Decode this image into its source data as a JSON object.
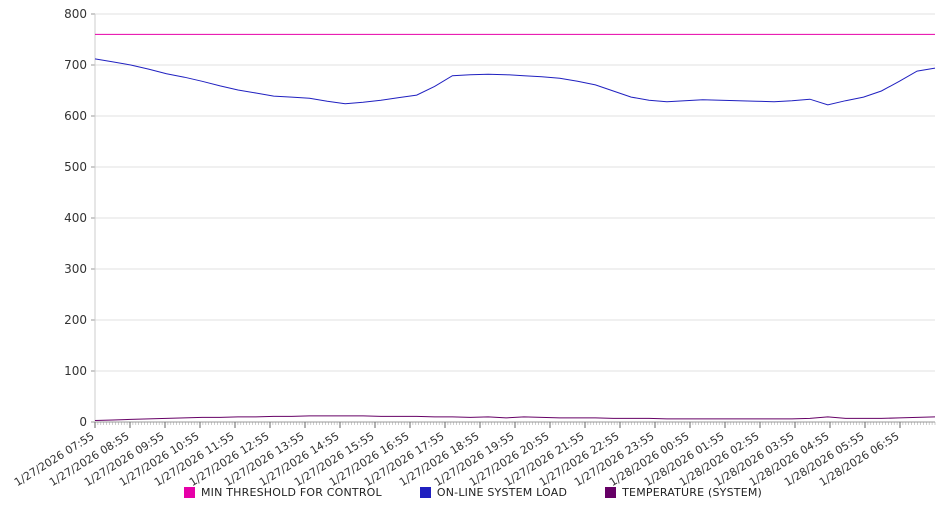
{
  "chart_data": {
    "type": "line",
    "title": "",
    "xlabel": "",
    "ylabel": "",
    "ylim": [
      0,
      800
    ],
    "yticks": [
      0,
      100,
      200,
      300,
      400,
      500,
      600,
      700,
      800
    ],
    "grid": true,
    "legend_position": "bottom",
    "x_labels": [
      "1/27/2026 07:55",
      "1/27/2026 08:55",
      "1/27/2026 09:55",
      "1/27/2026 10:55",
      "1/27/2026 11:55",
      "1/27/2026 12:55",
      "1/27/2026 13:55",
      "1/27/2026 14:55",
      "1/27/2026 15:55",
      "1/27/2026 16:55",
      "1/27/2026 17:55",
      "1/27/2026 18:55",
      "1/27/2026 19:55",
      "1/27/2026 20:55",
      "1/27/2026 21:55",
      "1/27/2026 22:55",
      "1/27/2026 23:55",
      "1/28/2026 00:55",
      "1/28/2026 01:55",
      "1/28/2026 02:55",
      "1/28/2026 03:55",
      "1/28/2026 04:55",
      "1/28/2026 05:55",
      "1/28/2026 06:55"
    ],
    "series": [
      {
        "name": "MIN THRESHOLD FOR CONTROL",
        "color": "#e600a8",
        "values": [
          760,
          760
        ]
      },
      {
        "name": "ON-LINE SYSTEM LOAD",
        "color": "#2020c0",
        "values": [
          712,
          706,
          700,
          692,
          683,
          676,
          668,
          659,
          651,
          645,
          639,
          637,
          635,
          629,
          624,
          627,
          631,
          636,
          641,
          658,
          679,
          681,
          682,
          681,
          679,
          677,
          674,
          668,
          661,
          649,
          637,
          631,
          628,
          630,
          632,
          631,
          630,
          629,
          628,
          630,
          633,
          622,
          630,
          637,
          649,
          668,
          688,
          694
        ]
      },
      {
        "name": "TEMPERATURE (SYSTEM)",
        "color": "#660066",
        "values": [
          3,
          4,
          5,
          6,
          7,
          8,
          9,
          9,
          10,
          10,
          11,
          11,
          12,
          12,
          12,
          12,
          11,
          11,
          11,
          10,
          10,
          9,
          10,
          8,
          10,
          9,
          8,
          8,
          8,
          7,
          7,
          7,
          6,
          6,
          6,
          6,
          6,
          6,
          6,
          6,
          7,
          10,
          7,
          7,
          7,
          8,
          9,
          10
        ]
      }
    ]
  }
}
